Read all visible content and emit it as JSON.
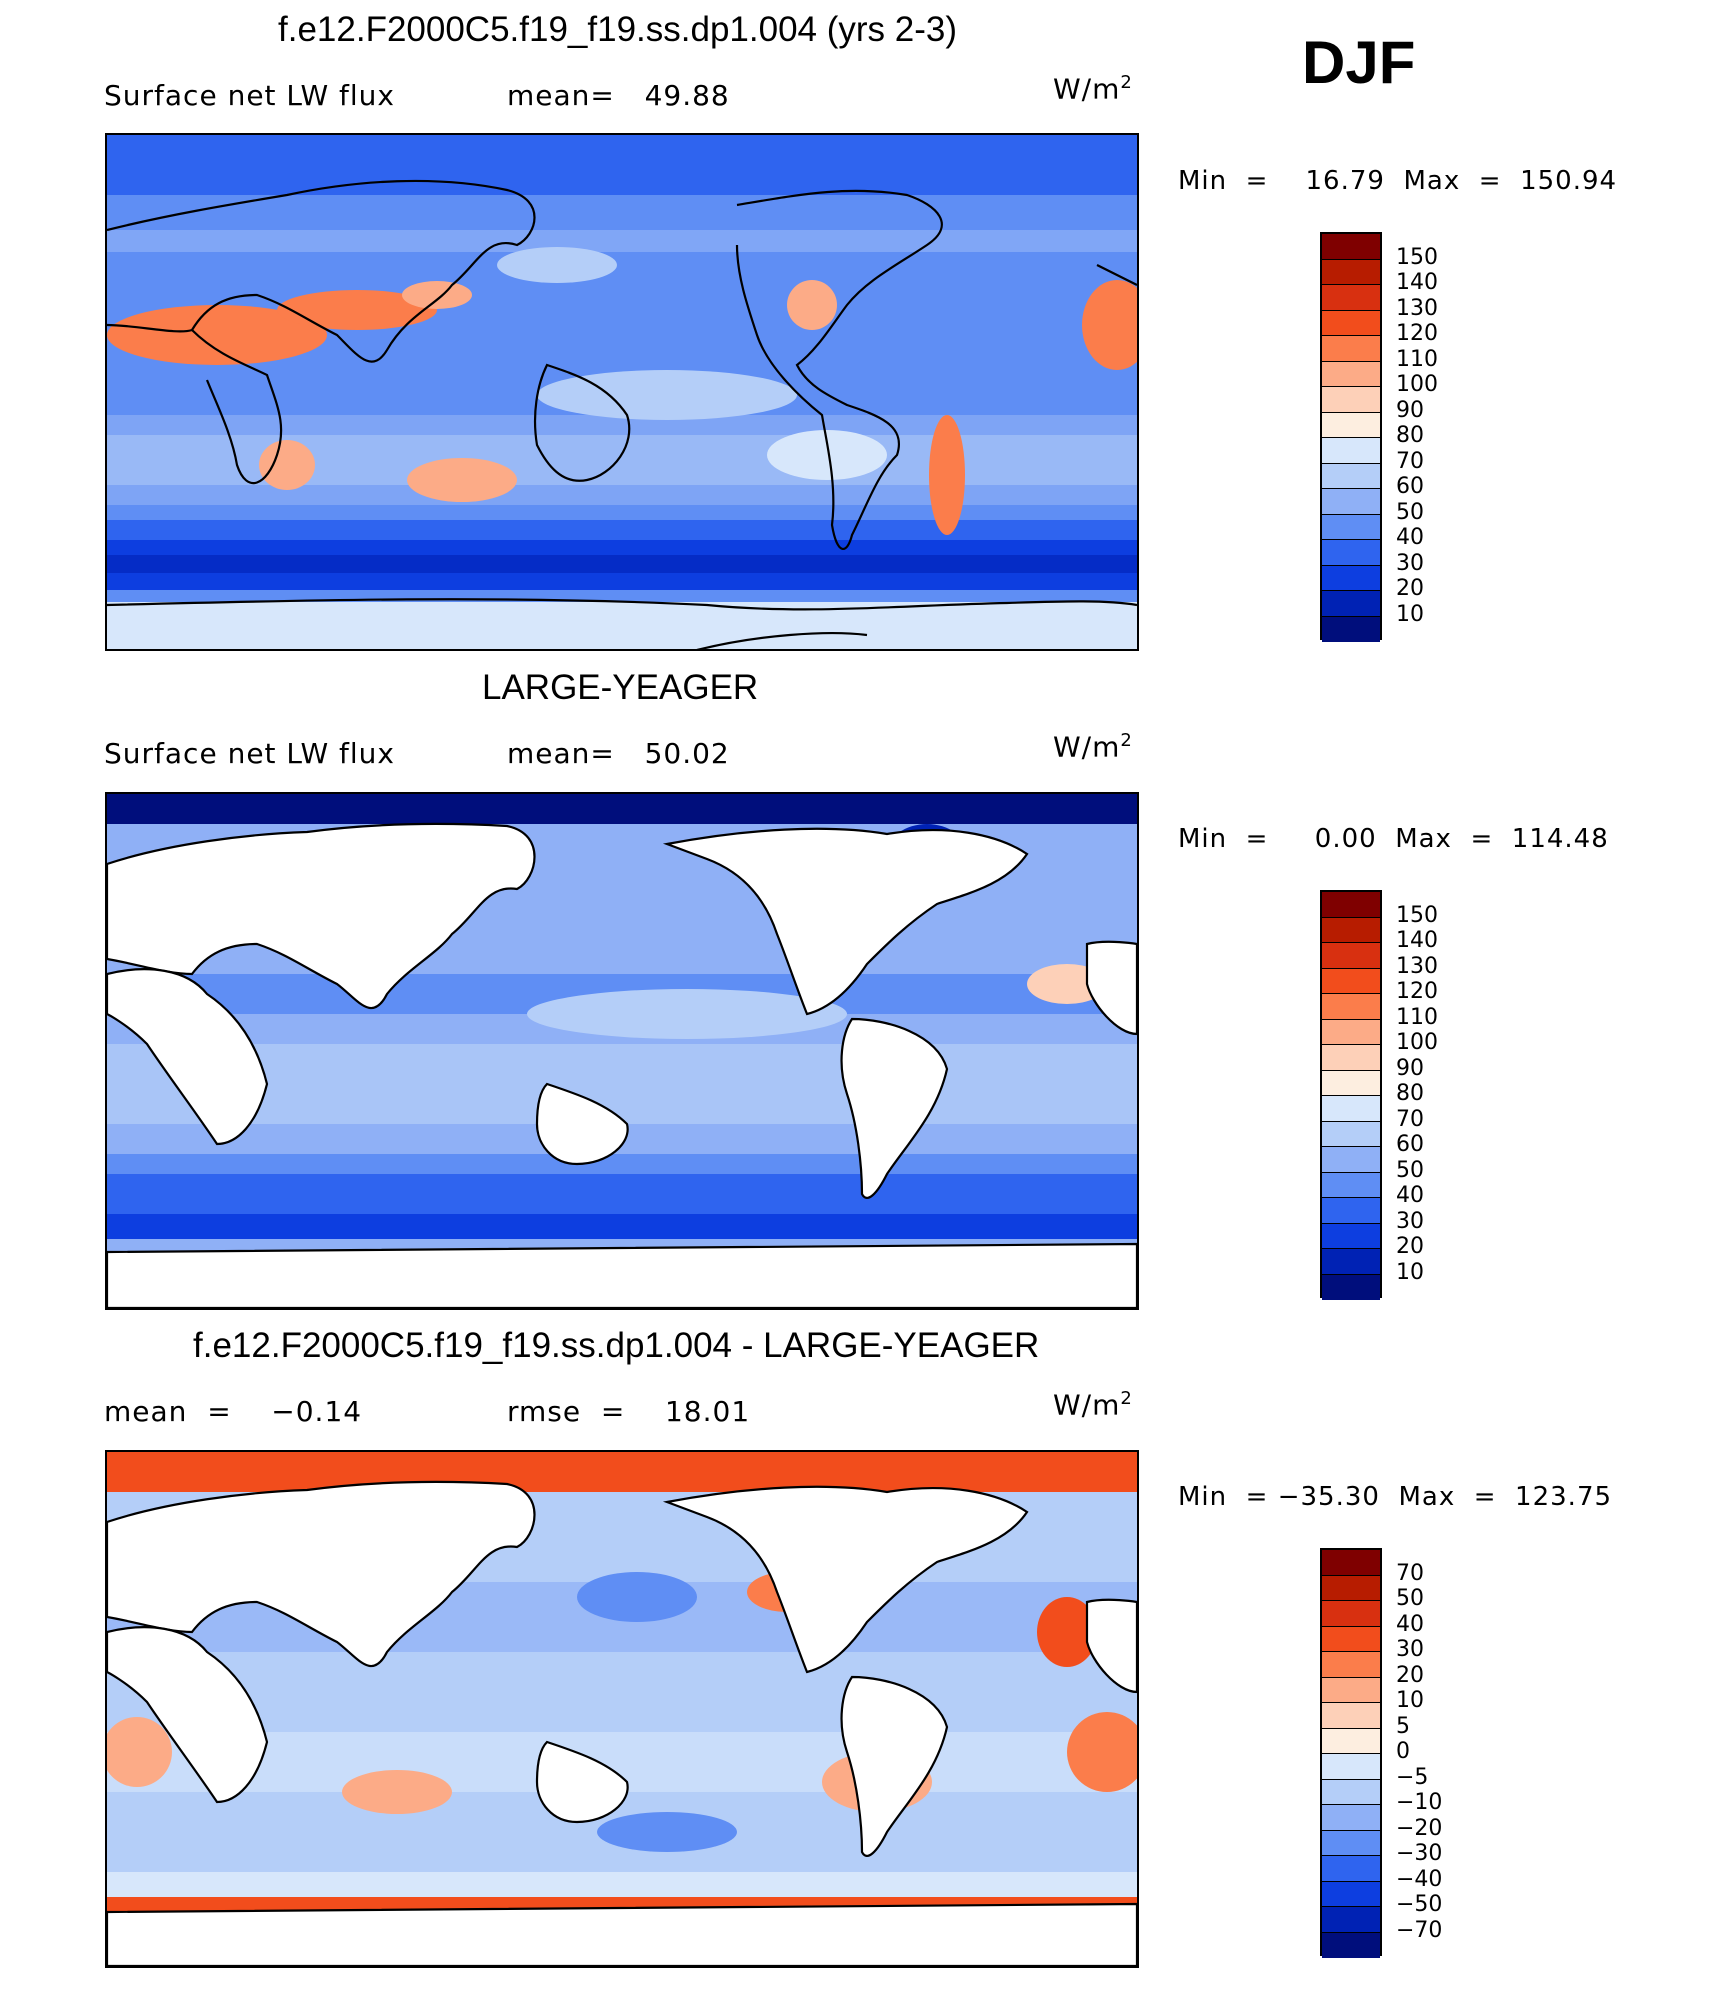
{
  "season": "DJF",
  "panels": [
    {
      "title": "f.e12.F2000C5.f19_f19.ss.dp1.004 (yrs 2-3)",
      "left_label": "Surface net LW flux",
      "mid_label": "mean=   49.88",
      "units": "W/m",
      "units_exp": "2",
      "minmax": "Min  =    16.79  Max  =  150.94",
      "land_masked": false,
      "colorbar": {
        "labels": [
          "150",
          "140",
          "130",
          "120",
          "110",
          "100",
          "90",
          "80",
          "70",
          "60",
          "50",
          "40",
          "30",
          "20",
          "10"
        ],
        "colors": [
          "#7f0000",
          "#b71c00",
          "#d83010",
          "#f24d1c",
          "#fb7d4b",
          "#fcab87",
          "#fdd0b8",
          "#fdeee0",
          "#d7e7fb",
          "#b4cef8",
          "#8fb0f6",
          "#5f8ef4",
          "#2f64ef",
          "#0d3ee0",
          "#0022b4",
          "#000e7c"
        ]
      }
    },
    {
      "title": "LARGE-YEAGER",
      "left_label": "Surface net LW flux",
      "mid_label": "mean=   50.02",
      "units": "W/m",
      "units_exp": "2",
      "minmax": "Min  =     0.00  Max  =  114.48",
      "land_masked": true,
      "colorbar": {
        "labels": [
          "150",
          "140",
          "130",
          "120",
          "110",
          "100",
          "90",
          "80",
          "70",
          "60",
          "50",
          "40",
          "30",
          "20",
          "10"
        ],
        "colors": [
          "#7f0000",
          "#b71c00",
          "#d83010",
          "#f24d1c",
          "#fb7d4b",
          "#fcab87",
          "#fdd0b8",
          "#fdeee0",
          "#d7e7fb",
          "#b4cef8",
          "#8fb0f6",
          "#5f8ef4",
          "#2f64ef",
          "#0d3ee0",
          "#0022b4",
          "#000e7c"
        ]
      }
    },
    {
      "title": "f.e12.F2000C5.f19_f19.ss.dp1.004 - LARGE-YEAGER",
      "left_label": "mean  =    −0.14",
      "mid_label": "rmse  =    18.01",
      "units": "W/m",
      "units_exp": "2",
      "minmax": "Min  = −35.30  Max  =  123.75",
      "land_masked": true,
      "colorbar": {
        "labels": [
          "70",
          "50",
          "40",
          "30",
          "20",
          "10",
          "5",
          "0",
          "−5",
          "−10",
          "−20",
          "−30",
          "−40",
          "−50",
          "−70"
        ],
        "colors": [
          "#7f0000",
          "#b71c00",
          "#d83010",
          "#f24d1c",
          "#fb7d4b",
          "#fcab87",
          "#fdd0b8",
          "#fdeee0",
          "#d7e7fb",
          "#b4cef8",
          "#8fb0f6",
          "#5f8ef4",
          "#2f64ef",
          "#0d3ee0",
          "#0022b4",
          "#000e7c"
        ]
      }
    }
  ]
}
